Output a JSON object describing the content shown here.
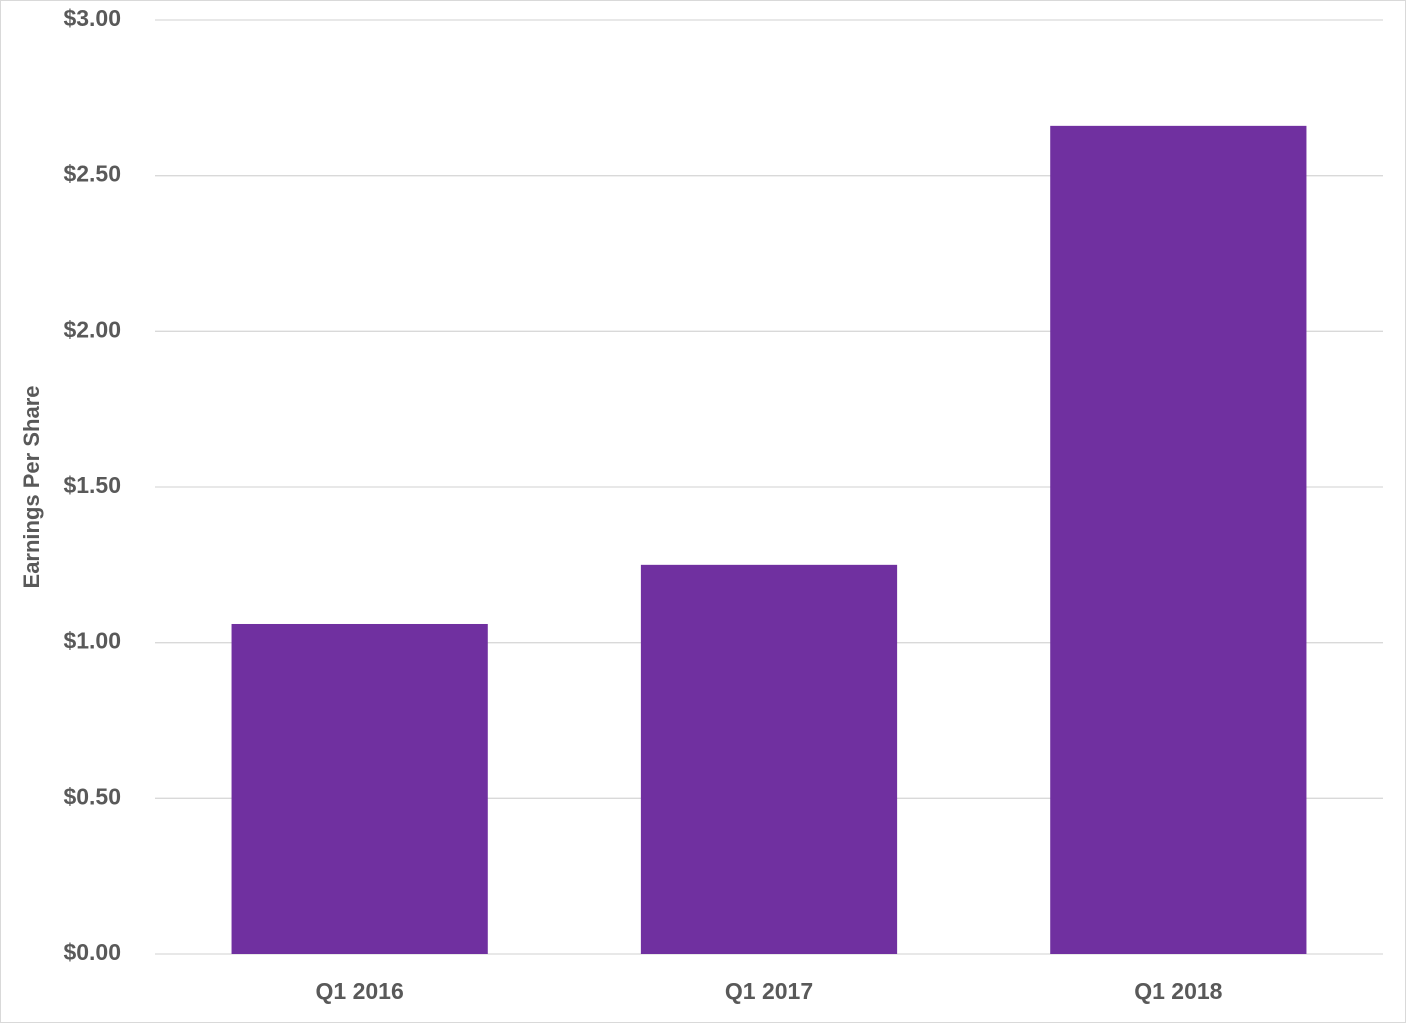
{
  "chart_data": {
    "type": "bar",
    "y_label": "Earnings Per Share",
    "categories": [
      "Q1 2016",
      "Q1 2017",
      "Q1 2018"
    ],
    "values": [
      1.06,
      1.25,
      2.66
    ],
    "color": "#7030a0",
    "ylim": [
      0,
      3
    ],
    "yticks": [
      {
        "value": 0,
        "label": "$0.00"
      },
      {
        "value": 0.5,
        "label": "$0.50"
      },
      {
        "value": 1,
        "label": "$1.00"
      },
      {
        "value": 1.5,
        "label": "$1.50"
      },
      {
        "value": 2,
        "label": "$2.00"
      },
      {
        "value": 2.5,
        "label": "$2.50"
      },
      {
        "value": 3,
        "label": "$3.00"
      }
    ],
    "grid": true
  }
}
